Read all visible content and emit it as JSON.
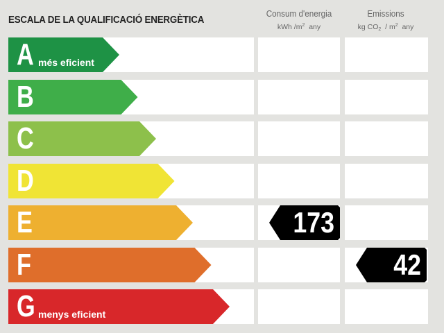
{
  "title": "ESCALA DE LA QUALIFICACIÓ ENERGÈTICA",
  "columns": {
    "consum": {
      "label": "Consum d'energia",
      "unit_pre": "kWh /m",
      "unit_sup": "2",
      "unit_post": "  any"
    },
    "emissions": {
      "label": "Emissions",
      "unit_pre": "kg CO",
      "unit_sub": "2",
      "unit_mid": "  / m",
      "unit_sup": "2",
      "unit_post": "  any"
    }
  },
  "classes": [
    {
      "letter": "A",
      "sublabel": "més eficient",
      "color": "#1e9245"
    },
    {
      "letter": "B",
      "sublabel": "",
      "color": "#3fae49"
    },
    {
      "letter": "C",
      "sublabel": "",
      "color": "#8dc04b"
    },
    {
      "letter": "D",
      "sublabel": "",
      "color": "#f0e435"
    },
    {
      "letter": "E",
      "sublabel": "",
      "color": "#eeb030"
    },
    {
      "letter": "F",
      "sublabel": "",
      "color": "#df6e2b"
    },
    {
      "letter": "G",
      "sublabel": "menys eficient",
      "color": "#d8272a"
    }
  ],
  "rating": {
    "consum": {
      "value": "173",
      "class": "E"
    },
    "emissions": {
      "value": "42",
      "class": "F"
    }
  }
}
